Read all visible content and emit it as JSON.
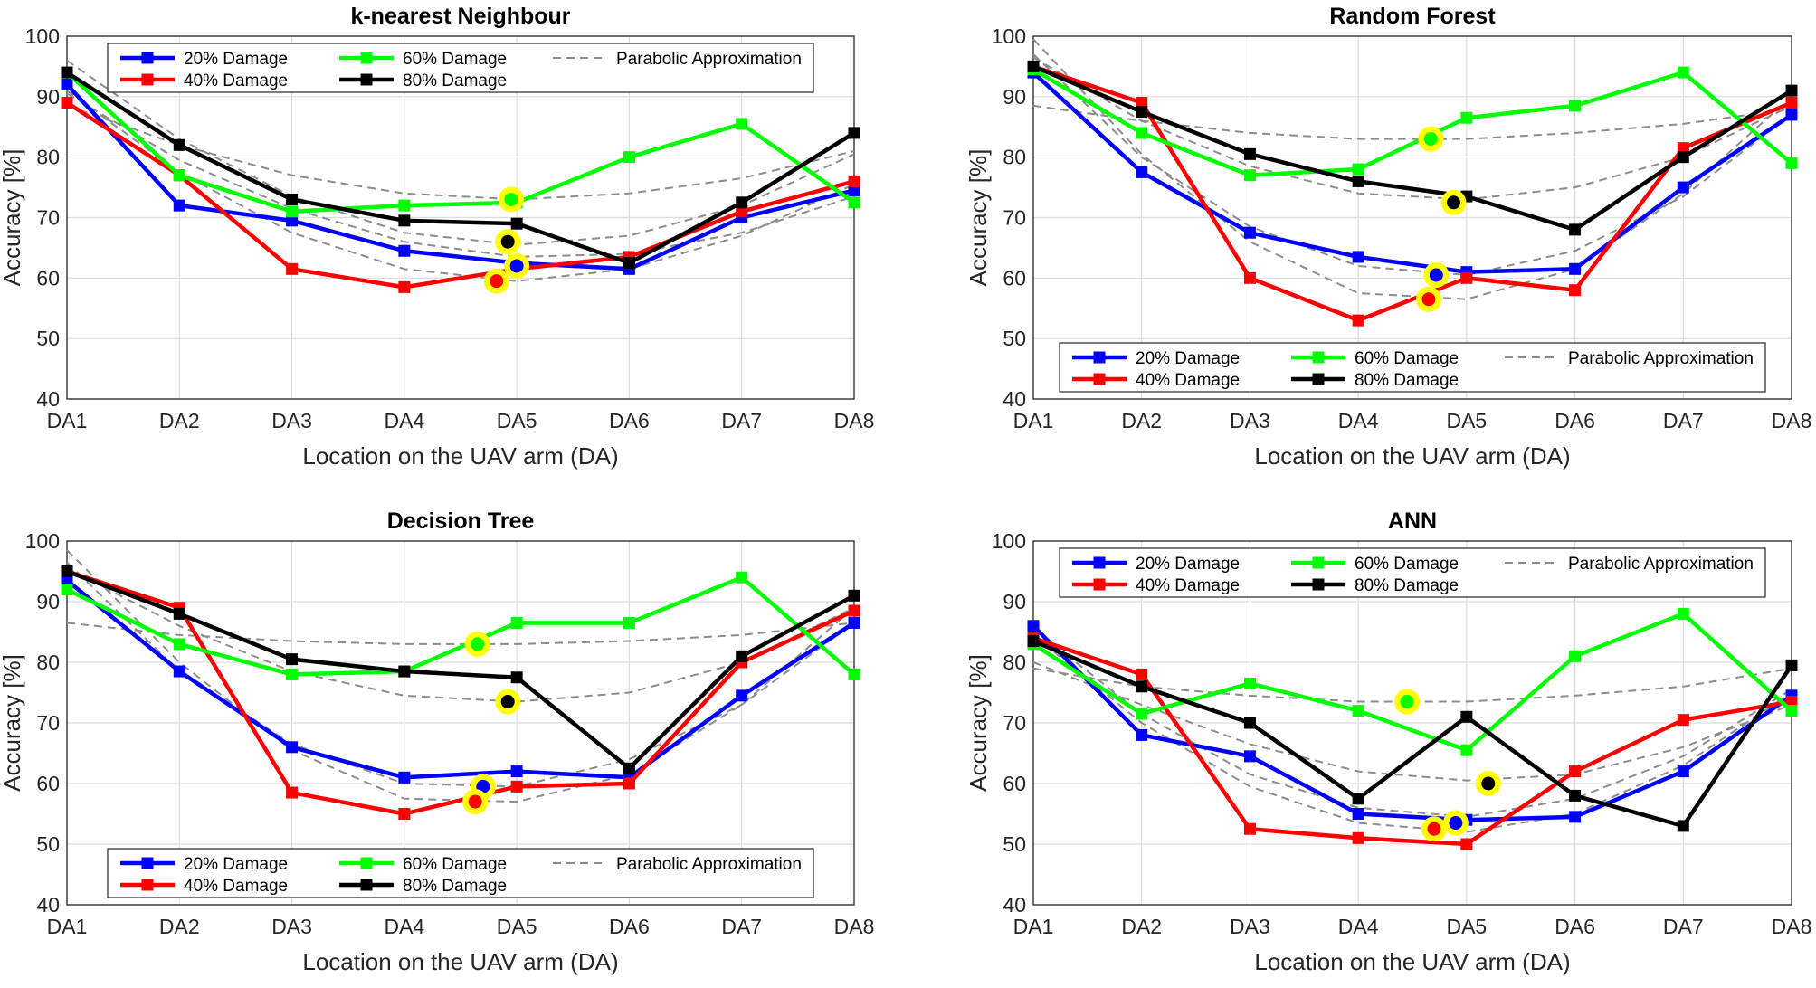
{
  "figure": {
    "colors": {
      "s20": "#0000ff",
      "s40": "#ff0000",
      "s60": "#00ff00",
      "s80": "#000000",
      "parabola": "#8c8c8c",
      "highlight": "#ffff00"
    }
  },
  "chart_data": [
    {
      "type": "line",
      "title": "k-nearest Neighbour",
      "xlabel": "Location on the UAV arm (DA)",
      "ylabel": "Accuracy [%]",
      "ylim": [
        40,
        100
      ],
      "yticks": [
        "40",
        "50",
        "60",
        "70",
        "80",
        "90",
        "100"
      ],
      "categories": [
        "DA1",
        "DA2",
        "DA3",
        "DA4",
        "DA5",
        "DA6",
        "DA7",
        "DA8"
      ],
      "grid": true,
      "legend_position": "top",
      "legend_parabolic_label": "Parabolic Approximation",
      "series": [
        {
          "name": "20% Damage",
          "color_key": "s20",
          "values": [
            92,
            72,
            69.5,
            64.5,
            62.5,
            61.5,
            70,
            74.5
          ]
        },
        {
          "name": "40% Damage",
          "color_key": "s40",
          "values": [
            89,
            77,
            61.5,
            58.5,
            61.5,
            63.5,
            71,
            76
          ]
        },
        {
          "name": "60% Damage",
          "color_key": "s60",
          "values": [
            94,
            77,
            71,
            72,
            72.5,
            80,
            85.5,
            72.5
          ]
        },
        {
          "name": "80% Damage",
          "color_key": "s80",
          "values": [
            94,
            82,
            73,
            69.5,
            69,
            62.5,
            72.5,
            84
          ]
        }
      ],
      "parabolas": [
        {
          "values": [
            90.5,
            79.5,
            71.5,
            66,
            63.5,
            64,
            67.5,
            73.5
          ]
        },
        {
          "values": [
            91,
            77.5,
            67.5,
            61.5,
            59.5,
            61.5,
            67,
            75.5
          ]
        },
        {
          "values": [
            88.5,
            82,
            77,
            74,
            73,
            74,
            76.5,
            81
          ]
        },
        {
          "values": [
            96,
            83,
            73.5,
            67.5,
            65.5,
            67,
            72,
            80.5
          ]
        }
      ],
      "highlights": [
        {
          "color_key": "s60",
          "x": 3.95,
          "y": 73
        },
        {
          "color_key": "s80",
          "x": 3.92,
          "y": 66
        },
        {
          "color_key": "s20",
          "x": 4.0,
          "y": 62
        },
        {
          "color_key": "s40",
          "x": 3.82,
          "y": 59.5
        }
      ]
    },
    {
      "type": "line",
      "title": "Random Forest",
      "xlabel": "Location on the UAV arm (DA)",
      "ylabel": "Accuracy [%]",
      "ylim": [
        40,
        100
      ],
      "yticks": [
        "40",
        "50",
        "60",
        "70",
        "80",
        "90",
        "100"
      ],
      "categories": [
        "DA1",
        "DA2",
        "DA3",
        "DA4",
        "DA5",
        "DA6",
        "DA7",
        "DA8"
      ],
      "grid": true,
      "legend_position": "bottom",
      "legend_parabolic_label": "Parabolic Approximation",
      "series": [
        {
          "name": "20% Damage",
          "color_key": "s20",
          "values": [
            94,
            77.5,
            67.5,
            63.5,
            61,
            61.5,
            75,
            87
          ]
        },
        {
          "name": "40% Damage",
          "color_key": "s40",
          "values": [
            95,
            89,
            60,
            53,
            60,
            58,
            81.5,
            89
          ]
        },
        {
          "name": "60% Damage",
          "color_key": "s60",
          "values": [
            94.5,
            84,
            77,
            78,
            86.5,
            88.5,
            94,
            79
          ]
        },
        {
          "name": "80% Damage",
          "color_key": "s80",
          "values": [
            95,
            87.5,
            80.5,
            76,
            73.5,
            68,
            80,
            91
          ]
        }
      ],
      "parabolas": [
        {
          "values": [
            97,
            80,
            68.5,
            62,
            60.5,
            64.5,
            73.5,
            87
          ]
        },
        {
          "values": [
            99.5,
            80.5,
            66,
            57.5,
            56.5,
            61.5,
            74,
            90
          ]
        },
        {
          "values": [
            88.5,
            86,
            84,
            83,
            83,
            84,
            85.5,
            88
          ]
        },
        {
          "values": [
            96.5,
            86,
            78.5,
            74,
            73,
            75,
            80,
            88.5
          ]
        }
      ],
      "highlights": [
        {
          "color_key": "s60",
          "x": 3.67,
          "y": 83
        },
        {
          "color_key": "s80",
          "x": 3.88,
          "y": 72.5
        },
        {
          "color_key": "s20",
          "x": 3.72,
          "y": 60.5
        },
        {
          "color_key": "s40",
          "x": 3.65,
          "y": 56.5
        }
      ]
    },
    {
      "type": "line",
      "title": "Decision Tree",
      "xlabel": "Location on the UAV arm (DA)",
      "ylabel": "Accuracy [%]",
      "ylim": [
        40,
        100
      ],
      "yticks": [
        "40",
        "50",
        "60",
        "70",
        "80",
        "90",
        "100"
      ],
      "categories": [
        "DA1",
        "DA2",
        "DA3",
        "DA4",
        "DA5",
        "DA6",
        "DA7",
        "DA8"
      ],
      "grid": true,
      "legend_position": "bottom",
      "legend_parabolic_label": "Parabolic Approximation",
      "series": [
        {
          "name": "20% Damage",
          "color_key": "s20",
          "values": [
            93.5,
            78.5,
            66,
            61,
            62,
            61,
            74.5,
            86.5
          ]
        },
        {
          "name": "40% Damage",
          "color_key": "s40",
          "values": [
            95,
            89,
            58.5,
            55,
            59.5,
            60,
            80,
            88.5
          ]
        },
        {
          "name": "60% Damage",
          "color_key": "s60",
          "values": [
            92,
            83,
            78,
            78.5,
            86.5,
            86.5,
            94,
            78
          ]
        },
        {
          "name": "80% Damage",
          "color_key": "s80",
          "values": [
            95,
            88,
            80.5,
            78.5,
            77.5,
            62.5,
            81,
            91
          ]
        }
      ],
      "parabolas": [
        {
          "values": [
            96.5,
            78.5,
            66.5,
            60,
            59.5,
            64,
            73,
            86.5
          ]
        },
        {
          "values": [
            98.5,
            80,
            65.5,
            57.5,
            57,
            61.5,
            73,
            89
          ]
        },
        {
          "values": [
            86.5,
            84.5,
            83.5,
            83,
            83,
            83.5,
            84.5,
            86.5
          ]
        },
        {
          "values": [
            95.5,
            86,
            78.5,
            74.5,
            73.5,
            75,
            80,
            89
          ]
        }
      ],
      "highlights": [
        {
          "color_key": "s60",
          "x": 3.65,
          "y": 83
        },
        {
          "color_key": "s80",
          "x": 3.92,
          "y": 73.5
        },
        {
          "color_key": "s20",
          "x": 3.7,
          "y": 59.5
        },
        {
          "color_key": "s40",
          "x": 3.63,
          "y": 57
        }
      ]
    },
    {
      "type": "line",
      "title": "ANN",
      "xlabel": "Location on the UAV arm (DA)",
      "ylabel": "Accuracy [%]",
      "ylim": [
        40,
        100
      ],
      "yticks": [
        "40",
        "50",
        "60",
        "70",
        "80",
        "90",
        "100"
      ],
      "categories": [
        "DA1",
        "DA2",
        "DA3",
        "DA4",
        "DA5",
        "DA6",
        "DA7",
        "DA8"
      ],
      "grid": true,
      "legend_position": "top",
      "legend_parabolic_label": "Parabolic Approximation",
      "series": [
        {
          "name": "20% Damage",
          "color_key": "s20",
          "values": [
            86,
            68,
            64.5,
            55,
            54,
            54.5,
            62,
            74.5
          ]
        },
        {
          "name": "40% Damage",
          "color_key": "s40",
          "values": [
            84,
            78,
            52.5,
            51,
            50,
            62,
            70.5,
            73.5
          ]
        },
        {
          "name": "60% Damage",
          "color_key": "s60",
          "values": [
            83,
            71.5,
            76.5,
            72,
            65.5,
            81,
            88,
            72
          ]
        },
        {
          "name": "80% Damage",
          "color_key": "s80",
          "values": [
            83.5,
            76,
            70,
            57.5,
            71,
            58,
            53,
            79.5
          ]
        }
      ],
      "parabolas": [
        {
          "values": [
            85.5,
            71.5,
            61.5,
            56,
            54.5,
            57.5,
            64.5,
            75.5
          ]
        },
        {
          "values": [
            84.5,
            70,
            59.5,
            53.5,
            52,
            55,
            63,
            75
          ]
        },
        {
          "values": [
            79,
            76,
            74.5,
            73.5,
            73.5,
            74.5,
            76,
            79
          ]
        },
        {
          "values": [
            80,
            73,
            66.5,
            62,
            60.5,
            61.5,
            66,
            73
          ]
        }
      ],
      "highlights": [
        {
          "color_key": "s60",
          "x": 3.45,
          "y": 73.5
        },
        {
          "color_key": "s80",
          "x": 4.2,
          "y": 60
        },
        {
          "color_key": "s20",
          "x": 3.9,
          "y": 53.5
        },
        {
          "color_key": "s40",
          "x": 3.7,
          "y": 52.5
        }
      ]
    }
  ]
}
